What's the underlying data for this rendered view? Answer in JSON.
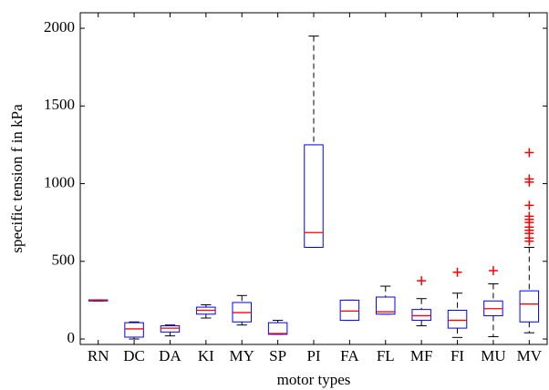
{
  "chart_data": {
    "type": "box",
    "xlabel": "motor types",
    "ylabel": "specific tension f in kPa",
    "categories": [
      "RN",
      "DC",
      "DA",
      "KI",
      "MY",
      "SP",
      "PI",
      "FA",
      "FL",
      "MF",
      "FI",
      "MU",
      "MV"
    ],
    "boxes": [
      {
        "low": 245,
        "q1": 245,
        "median": 250,
        "q3": 252,
        "high": 252,
        "outliers": []
      },
      {
        "low": 0,
        "q1": 12,
        "median": 65,
        "q3": 105,
        "high": 110,
        "outliers": []
      },
      {
        "low": 20,
        "q1": 45,
        "median": 70,
        "q3": 85,
        "high": 90,
        "outliers": []
      },
      {
        "low": 135,
        "q1": 160,
        "median": 185,
        "q3": 205,
        "high": 220,
        "outliers": []
      },
      {
        "low": 90,
        "q1": 110,
        "median": 170,
        "q3": 235,
        "high": 280,
        "outliers": []
      },
      {
        "low": 30,
        "q1": 30,
        "median": 35,
        "q3": 105,
        "high": 120,
        "outliers": []
      },
      {
        "low": 590,
        "q1": 590,
        "median": 685,
        "q3": 1250,
        "high": 1950,
        "outliers": []
      },
      {
        "low": 120,
        "q1": 120,
        "median": 180,
        "q3": 250,
        "high": 250,
        "outliers": []
      },
      {
        "low": 160,
        "q1": 160,
        "median": 175,
        "q3": 270,
        "high": 340,
        "outliers": []
      },
      {
        "low": 85,
        "q1": 120,
        "median": 150,
        "q3": 190,
        "high": 260,
        "outliers": [
          375
        ]
      },
      {
        "low": 10,
        "q1": 70,
        "median": 120,
        "q3": 185,
        "high": 295,
        "outliers": [
          430
        ]
      },
      {
        "low": 15,
        "q1": 150,
        "median": 195,
        "q3": 245,
        "high": 355,
        "outliers": [
          440
        ]
      },
      {
        "low": 40,
        "q1": 110,
        "median": 225,
        "q3": 310,
        "high": 590,
        "outliers": [
          630,
          650,
          680,
          700,
          720,
          750,
          770,
          790,
          860,
          1010,
          1030,
          1200
        ]
      }
    ],
    "ylim": [
      -35,
      2100
    ],
    "yticks": [
      0,
      500,
      1000,
      1500,
      2000
    ],
    "box_color": "#0000ff",
    "median_color": "#ff0000",
    "whisker_color": "#000000",
    "outlier_color": "#ff0000"
  }
}
